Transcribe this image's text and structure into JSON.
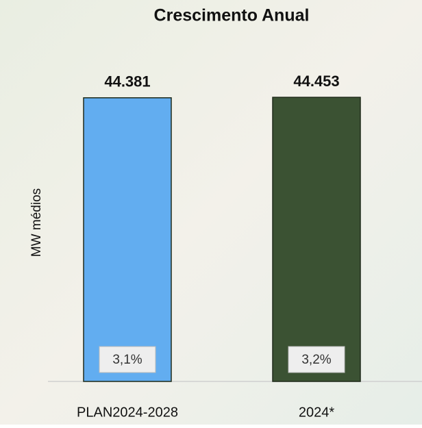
{
  "chart_data": {
    "type": "bar",
    "title": "Crescimento Anual",
    "y_label": "MW médios",
    "categories": [
      "PLAN2024-2028",
      "2024*"
    ],
    "series": [
      {
        "values": [
          44381,
          44453
        ],
        "value_labels": [
          "44.381",
          "44.453"
        ],
        "colors": [
          "#62adf0",
          "#3b5233"
        ]
      }
    ],
    "growth": {
      "values": [
        3.1,
        3.2
      ],
      "value_labels": [
        "3,1%",
        "3,2%"
      ]
    },
    "ylim": [
      0,
      45000
    ]
  }
}
